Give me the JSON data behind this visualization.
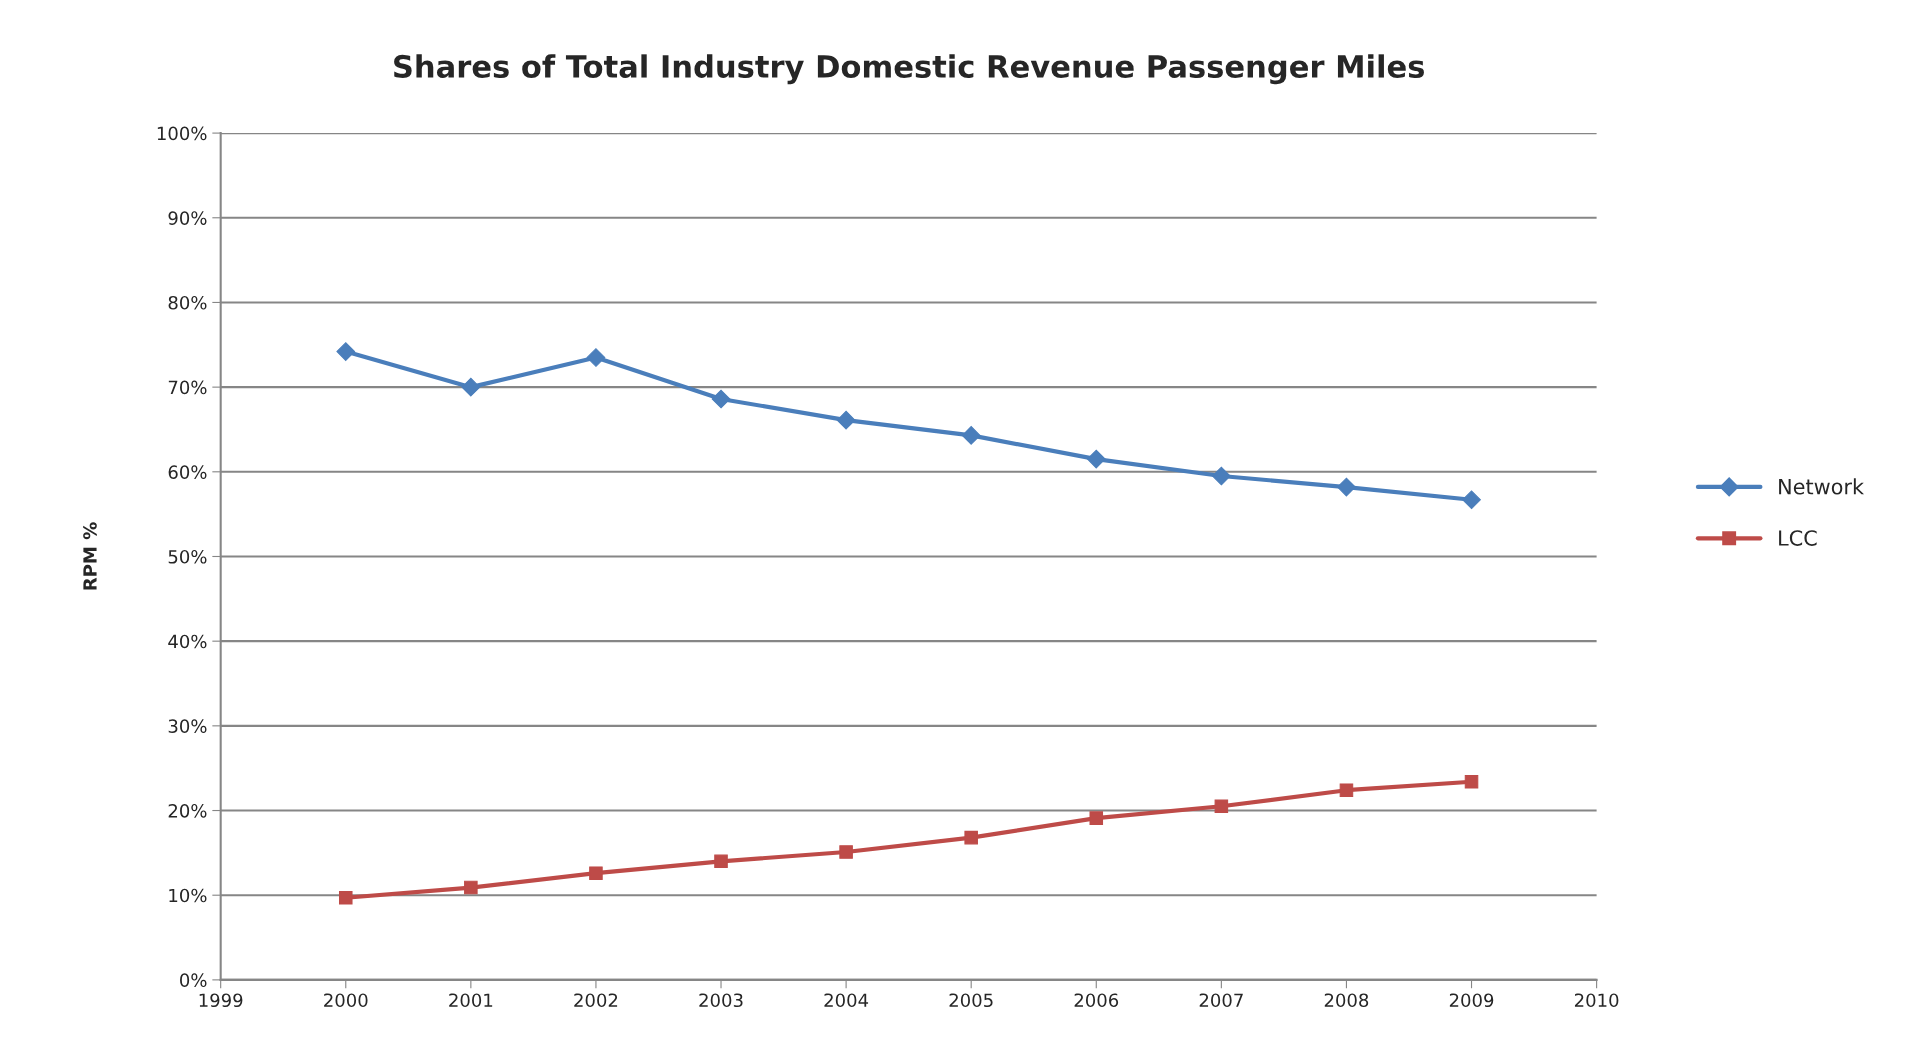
{
  "chart_data": {
    "type": "line",
    "title": "Shares of Total Industry Domestic Revenue Passenger Miles",
    "ylabel": "RPM %",
    "x": [
      2000,
      2001,
      2002,
      2003,
      2004,
      2005,
      2006,
      2007,
      2008,
      2009
    ],
    "series": [
      {
        "name": "Network",
        "color": "#4a7ebb",
        "marker": "diamond",
        "values": [
          74.2,
          70.0,
          73.5,
          68.6,
          66.1,
          64.3,
          61.5,
          59.5,
          58.2,
          56.7
        ]
      },
      {
        "name": "LCC",
        "color": "#be4b48",
        "marker": "square",
        "values": [
          9.7,
          10.9,
          12.6,
          14.0,
          15.1,
          16.8,
          19.1,
          20.5,
          22.4,
          23.4
        ]
      }
    ],
    "xlim": [
      1999,
      2010
    ],
    "xticks": [
      1999,
      2000,
      2001,
      2002,
      2003,
      2004,
      2005,
      2006,
      2007,
      2008,
      2009,
      2010
    ],
    "ylim": [
      0,
      100
    ],
    "yticks": [
      {
        "value": 0,
        "label": "0%"
      },
      {
        "value": 10,
        "label": "10%"
      },
      {
        "value": 20,
        "label": "20%"
      },
      {
        "value": 30,
        "label": "30%"
      },
      {
        "value": 40,
        "label": "40%"
      },
      {
        "value": 50,
        "label": "50%"
      },
      {
        "value": 60,
        "label": "60%"
      },
      {
        "value": 70,
        "label": "70%"
      },
      {
        "value": 80,
        "label": "80%"
      },
      {
        "value": 90,
        "label": "90%"
      },
      {
        "value": 100,
        "label": "100%"
      }
    ],
    "grid": "y",
    "legend": "right",
    "line_style": "solid"
  }
}
